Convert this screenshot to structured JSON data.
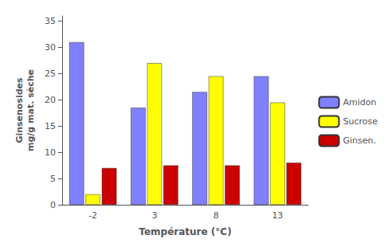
{
  "chart_data": {
    "type": "bar",
    "xlabel": "Température (°C)",
    "ylabel": "Ginsenosides\nmg/g mat. sèche",
    "categories": [
      "-2",
      "3",
      "8",
      "13"
    ],
    "series": [
      {
        "name": "Amidon",
        "color": "#8080ff",
        "values": [
          31,
          18.5,
          21.5,
          24.5
        ]
      },
      {
        "name": "Sucrose",
        "color": "#ffff00",
        "values": [
          2,
          27,
          24.5,
          19.5
        ]
      },
      {
        "name": "Ginsen.",
        "color": "#cc0000",
        "values": [
          7,
          7.5,
          7.5,
          8
        ]
      }
    ],
    "ylim": [
      0,
      36
    ],
    "yticks": [
      0,
      5,
      10,
      15,
      20,
      25,
      30,
      35
    ],
    "grid": false,
    "legend": "right"
  }
}
